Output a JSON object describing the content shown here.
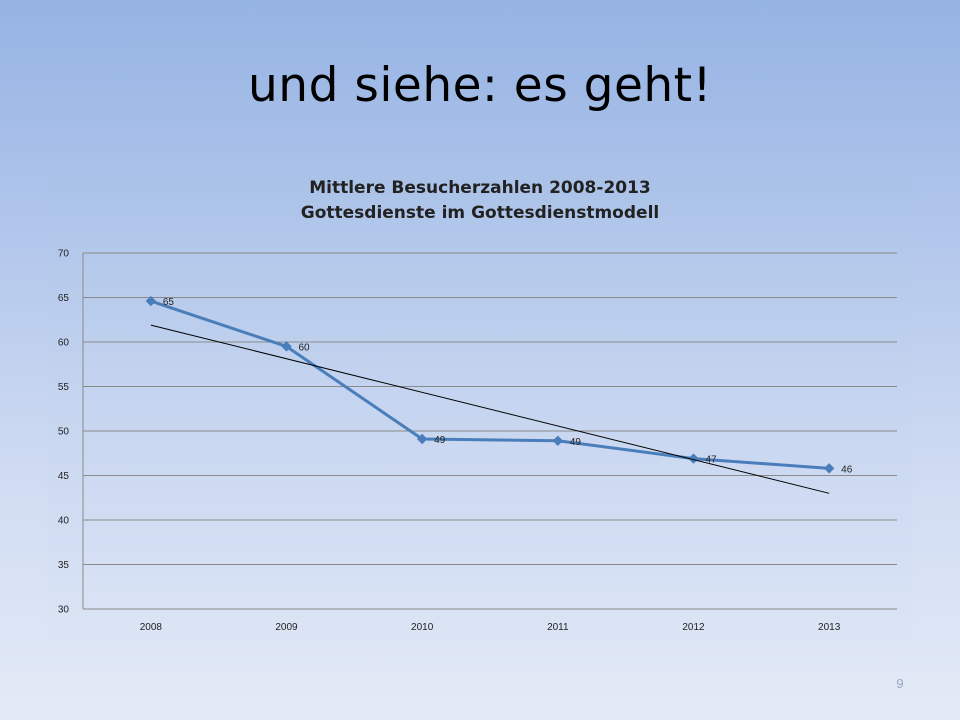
{
  "slide": {
    "title": "und siehe: es geht!",
    "page_number": "9"
  },
  "chart_data": {
    "type": "line",
    "title_line1": "Mittlere Besucherzahlen 2008-2013",
    "title_line2": "Gottesdienste im Gottesdienstmodell",
    "categories": [
      "2008",
      "2009",
      "2010",
      "2011",
      "2012",
      "2013"
    ],
    "series": [
      {
        "values": [
          64.6,
          59.5,
          49.1,
          48.9,
          46.9,
          45.8
        ],
        "data_labels": [
          "65",
          "60",
          "49",
          "49",
          "47",
          "46"
        ],
        "color": "#4a7ebb",
        "marker": "diamond"
      }
    ],
    "trendline": {
      "type": "linear",
      "start": 61.9,
      "end": 43.0,
      "color": "#000000"
    },
    "ylim": [
      30,
      70
    ],
    "yticks": [
      30,
      35,
      40,
      45,
      50,
      55,
      60,
      65,
      70
    ],
    "grid": true,
    "xlabel": "",
    "ylabel": ""
  }
}
